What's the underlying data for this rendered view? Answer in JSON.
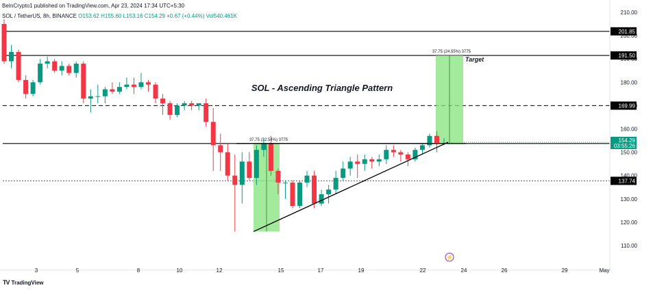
{
  "header": {
    "publisher": "BeInCrypto1 published on TradingView.com, Apr 23, 2024 17:34 UTC+5:30",
    "symbol": "SOL / TetherUS, 8h, BINANCE",
    "open": "O153.62",
    "high": "H155.60",
    "low": "L153.16",
    "close": "C154.29",
    "change": "+0.67 (+0.44%)",
    "volume": "Vol540.461K"
  },
  "footer": {
    "brand": "TradingView",
    "logo": "TV"
  },
  "colors": {
    "up": "#089981",
    "down": "#f23645",
    "zone": "#86e37c",
    "line": "#000000"
  },
  "chart_data": {
    "type": "candlestick",
    "title": "SOL - Ascending Triangle Pattern",
    "ylim": [
      103,
      212
    ],
    "y_ticks": [
      "210.00",
      "200.00",
      "190.00",
      "180.00",
      "170.00",
      "160.00",
      "150.00",
      "140.00",
      "130.00",
      "120.00",
      "110.00"
    ],
    "x_ticks": [
      "3",
      "5",
      "8",
      "10",
      "12",
      "15",
      "17",
      "19",
      "22",
      "24",
      "26",
      "29",
      "May"
    ],
    "horizontal_levels": [
      {
        "value": 201.85,
        "label": "201.85",
        "style": "solid"
      },
      {
        "value": 191.5,
        "label": "191.50",
        "style": "solid"
      },
      {
        "value": 169.99,
        "label": "169.99",
        "style": "dashed"
      },
      {
        "value": 153.75,
        "label": "153.75",
        "style": "solid"
      },
      {
        "value": 137.74,
        "label": "137.74",
        "style": "dotted"
      }
    ],
    "current_price": {
      "label": "154.29",
      "countdown": "03:55:26"
    },
    "measurements": [
      {
        "label": "37.75 (32.54%) 3775",
        "from": 116,
        "to": 153.75
      },
      {
        "label": "37.75 (24.55%) 3775",
        "from": 153.75,
        "to": 191.5
      }
    ],
    "annotations": {
      "target": "Target"
    },
    "trendline": {
      "from": 116,
      "to": 154.3
    },
    "candles": [
      [
        205,
        207,
        188,
        189
      ],
      [
        189,
        196,
        186,
        193
      ],
      [
        193,
        194,
        180,
        181
      ],
      [
        181,
        183,
        173,
        175
      ],
      [
        175,
        181,
        174,
        180
      ],
      [
        180,
        190,
        179,
        188
      ],
      [
        188,
        191,
        186,
        189
      ],
      [
        189,
        190,
        184,
        185
      ],
      [
        185,
        189,
        183,
        187
      ],
      [
        187,
        188,
        183,
        184
      ],
      [
        184,
        189,
        182,
        188
      ],
      [
        188,
        189,
        171,
        173
      ],
      [
        173,
        177,
        167,
        174
      ],
      [
        174,
        179,
        171,
        174
      ],
      [
        174,
        178,
        171,
        177
      ],
      [
        177,
        180,
        175,
        176
      ],
      [
        176,
        180,
        175,
        178
      ],
      [
        178,
        182,
        177,
        179
      ],
      [
        179,
        182,
        175,
        178
      ],
      [
        178,
        184,
        177,
        180
      ],
      [
        180,
        181,
        176,
        179
      ],
      [
        179,
        180,
        171,
        173
      ],
      [
        173,
        175,
        166,
        171
      ],
      [
        171,
        172,
        164,
        166
      ],
      [
        166,
        171,
        165,
        170
      ],
      [
        170,
        172,
        168,
        171
      ],
      [
        171,
        172,
        168,
        170
      ],
      [
        170,
        171,
        168,
        171
      ],
      [
        171,
        173,
        161,
        163
      ],
      [
        163,
        169,
        142,
        153
      ],
      [
        153,
        158,
        142,
        150
      ],
      [
        150,
        154,
        138,
        140
      ],
      [
        140,
        149,
        116,
        136
      ],
      [
        136,
        150,
        128,
        146
      ],
      [
        146,
        150,
        138,
        139
      ],
      [
        139,
        153,
        136,
        151
      ],
      [
        151,
        156,
        148,
        154
      ],
      [
        154,
        157,
        140,
        142
      ],
      [
        142,
        143,
        132,
        137
      ],
      [
        137,
        138,
        130,
        137
      ],
      [
        137,
        138,
        126,
        127
      ],
      [
        127,
        138,
        126,
        137
      ],
      [
        137,
        142,
        135,
        140
      ],
      [
        140,
        142,
        126,
        128
      ],
      [
        128,
        134,
        127,
        132
      ],
      [
        132,
        136,
        128,
        134
      ],
      [
        134,
        142,
        132,
        139
      ],
      [
        139,
        146,
        138,
        143
      ],
      [
        143,
        148,
        140,
        146
      ],
      [
        146,
        149,
        139,
        145
      ],
      [
        145,
        149,
        142,
        147
      ],
      [
        147,
        148,
        143,
        146
      ],
      [
        146,
        149,
        144,
        147
      ],
      [
        147,
        153,
        145,
        151
      ],
      [
        151,
        153,
        148,
        150
      ],
      [
        150,
        151,
        146,
        149
      ],
      [
        149,
        150,
        144,
        147
      ],
      [
        147,
        152,
        146,
        151
      ],
      [
        151,
        154,
        149,
        153
      ],
      [
        153,
        158,
        152,
        157
      ],
      [
        157,
        159,
        150,
        154
      ],
      [
        154,
        156,
        153,
        154
      ]
    ]
  }
}
